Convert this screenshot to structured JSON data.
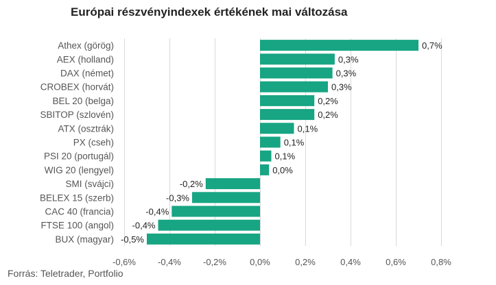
{
  "chart_data": {
    "type": "bar",
    "orientation": "horizontal",
    "title": "Európai részvényindexek értékének mai változása",
    "categories": [
      "Athex (görög)",
      "AEX (holland)",
      "DAX (német)",
      "CROBEX (horvát)",
      "BEL 20 (belga)",
      "SBITOP (szlovén)",
      "ATX (osztrák)",
      "PX (cseh)",
      "PSI 20 (portugál)",
      "WIG 20 (lengyel)",
      "SMI (svájci)",
      "BELEX 15 (szerb)",
      "CAC 40 (francia)",
      "FTSE 100 (angol)",
      "BUX (magyar)"
    ],
    "values": [
      0.7,
      0.33,
      0.32,
      0.3,
      0.24,
      0.24,
      0.15,
      0.09,
      0.05,
      0.04,
      -0.24,
      -0.3,
      -0.39,
      -0.45,
      -0.5
    ],
    "value_labels": [
      "0,7%",
      "0,3%",
      "0,3%",
      "0,3%",
      "0,2%",
      "0,2%",
      "0,1%",
      "0,1%",
      "0,1%",
      "0,0%",
      "-0,2%",
      "-0,3%",
      "-0,4%",
      "-0,4%",
      "-0,5%"
    ],
    "xlim": [
      -0.6,
      0.8
    ],
    "xticks": [
      -0.6,
      -0.4,
      -0.2,
      0.0,
      0.2,
      0.4,
      0.6,
      0.8
    ],
    "xtick_labels": [
      "-0,6%",
      "-0,4%",
      "-0,2%",
      "0,0%",
      "0,2%",
      "0,4%",
      "0,6%",
      "0,8%"
    ],
    "xlabel": "",
    "ylabel": "",
    "grid": "vertical",
    "bar_color": "#17a583"
  },
  "source": "Forrás: Teletrader, Portfolio"
}
